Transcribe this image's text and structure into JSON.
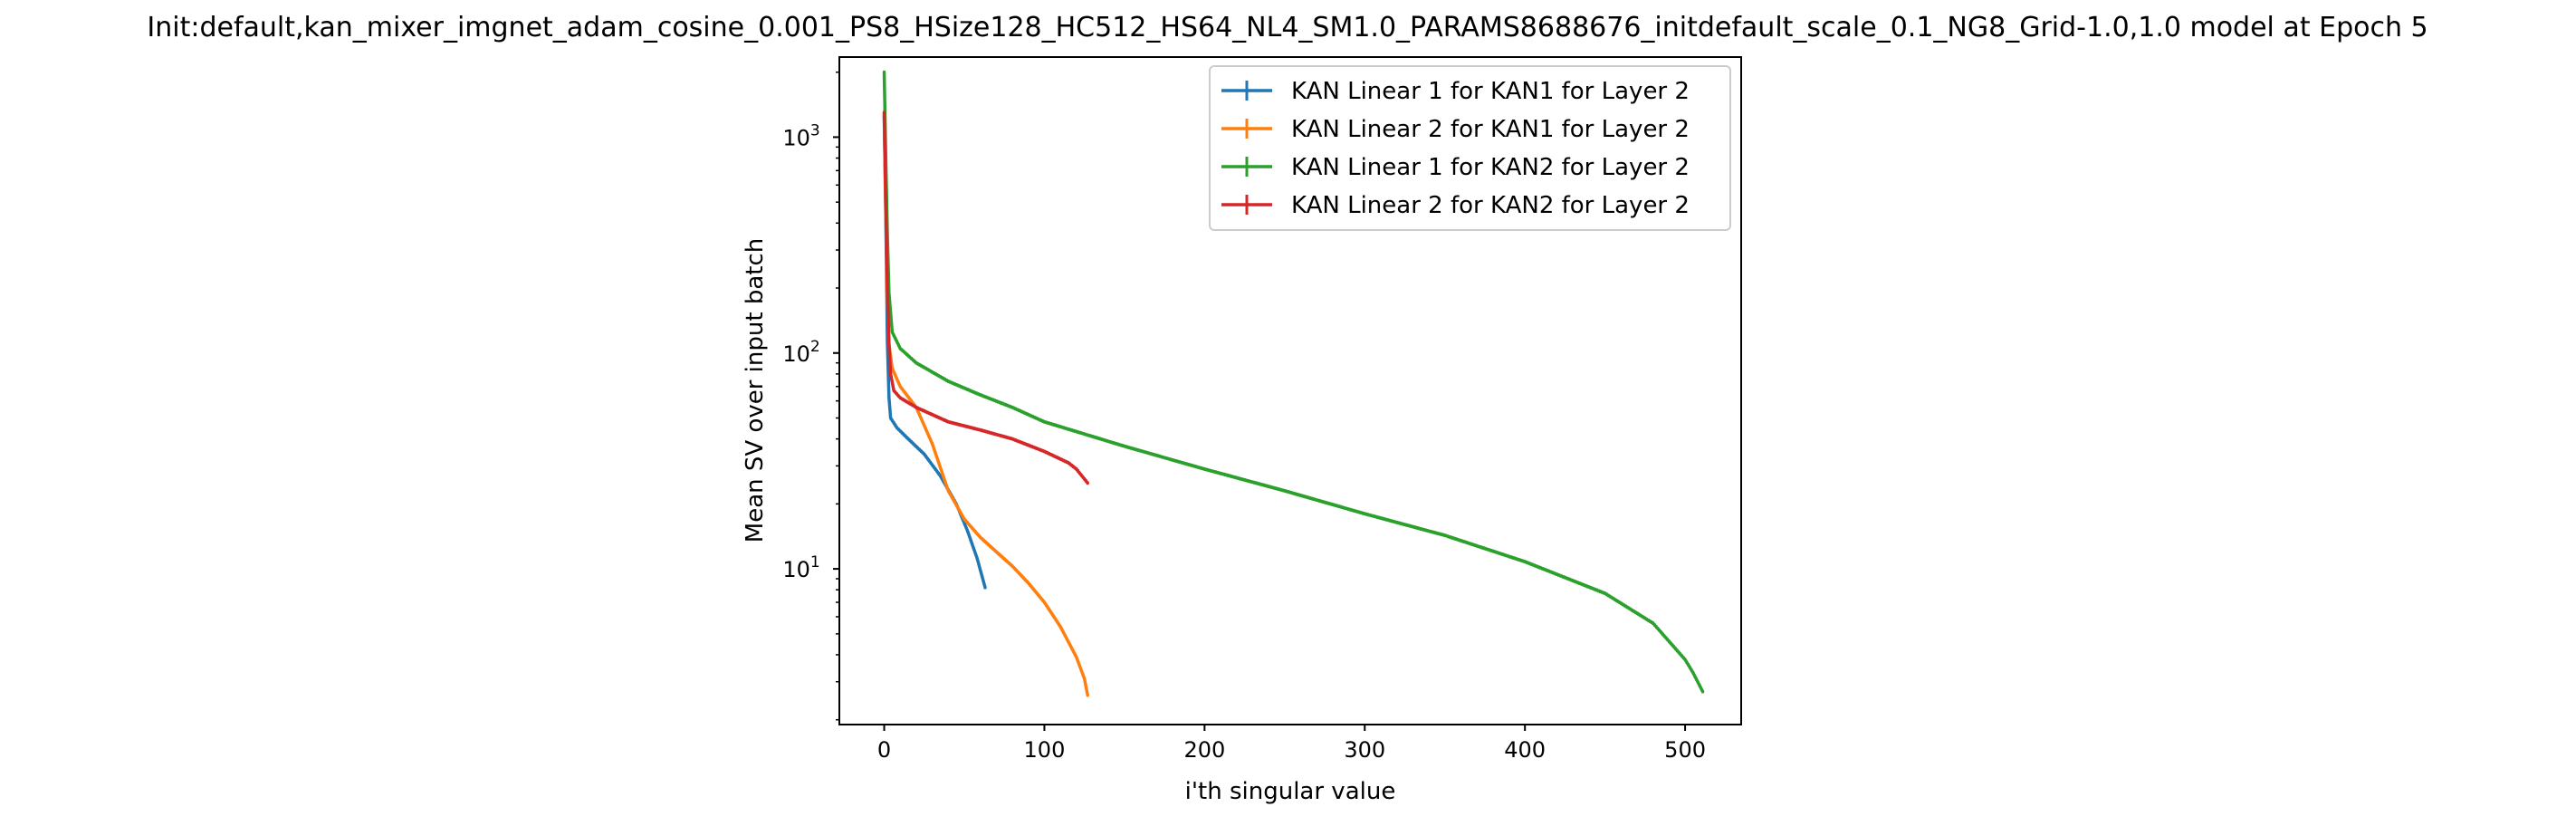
{
  "chart_data": {
    "type": "line",
    "title": "Init:default,kan_mixer_imgnet_adam_cosine_0.001_PS8_HSize128_HC512_HS64_NL4_SM1.0_PARAMS8688676_initdefault_scale_0.1_NG8_Grid-1.0,1.0 model at Epoch 5",
    "xlabel": "i'th singular value",
    "ylabel": "Mean SV over input batch",
    "xlim": [
      -28,
      535
    ],
    "ylim": [
      1.9,
      2350
    ],
    "yscale": "log",
    "grid": false,
    "legend_position": "top-right",
    "error_bars": true,
    "x_ticks": [
      {
        "value": 0,
        "label": "0"
      },
      {
        "value": 100,
        "label": "100"
      },
      {
        "value": 200,
        "label": "200"
      },
      {
        "value": 300,
        "label": "300"
      },
      {
        "value": 400,
        "label": "400"
      },
      {
        "value": 500,
        "label": "500"
      }
    ],
    "y_ticks": [
      {
        "value": 10,
        "base": "10",
        "exp": "1"
      },
      {
        "value": 100,
        "base": "10",
        "exp": "2"
      },
      {
        "value": 1000,
        "base": "10",
        "exp": "3"
      }
    ],
    "series": [
      {
        "name": "KAN Linear 1 for KAN1 for Layer 2",
        "color": "#1f77b4",
        "n": 64,
        "points": [
          [
            0,
            1250
          ],
          [
            1,
            420
          ],
          [
            2,
            110
          ],
          [
            3,
            62
          ],
          [
            4,
            50
          ],
          [
            8,
            45
          ],
          [
            15,
            40
          ],
          [
            25,
            34
          ],
          [
            35,
            27
          ],
          [
            45,
            20
          ],
          [
            52,
            15
          ],
          [
            58,
            11.2
          ],
          [
            63,
            8.2
          ]
        ]
      },
      {
        "name": "KAN Linear 2 for KAN1 for Layer 2",
        "color": "#ff7f0e",
        "n": 128,
        "points": [
          [
            0,
            1300
          ],
          [
            1,
            450
          ],
          [
            2,
            180
          ],
          [
            3,
            110
          ],
          [
            5,
            85
          ],
          [
            10,
            70
          ],
          [
            20,
            56
          ],
          [
            30,
            38
          ],
          [
            40,
            23
          ],
          [
            50,
            17
          ],
          [
            60,
            14
          ],
          [
            70,
            12
          ],
          [
            80,
            10.3
          ],
          [
            90,
            8.6
          ],
          [
            100,
            7
          ],
          [
            110,
            5.4
          ],
          [
            120,
            3.9
          ],
          [
            125,
            3.1
          ],
          [
            127,
            2.6
          ]
        ]
      },
      {
        "name": "KAN Linear 1 for KAN2 for Layer 2",
        "color": "#2ca02c",
        "n": 512,
        "points": [
          [
            0,
            2000
          ],
          [
            1,
            800
          ],
          [
            2,
            350
          ],
          [
            3,
            190
          ],
          [
            5,
            125
          ],
          [
            10,
            105
          ],
          [
            20,
            90
          ],
          [
            40,
            74
          ],
          [
            60,
            64
          ],
          [
            80,
            56
          ],
          [
            100,
            48
          ],
          [
            150,
            37
          ],
          [
            200,
            29
          ],
          [
            250,
            23
          ],
          [
            300,
            18
          ],
          [
            350,
            14.3
          ],
          [
            400,
            10.8
          ],
          [
            450,
            7.7
          ],
          [
            480,
            5.6
          ],
          [
            500,
            3.8
          ],
          [
            505,
            3.3
          ],
          [
            511,
            2.7
          ]
        ]
      },
      {
        "name": "KAN Linear 2 for KAN2 for Layer 2",
        "color": "#d62728",
        "n": 128,
        "points": [
          [
            0,
            1300
          ],
          [
            1,
            500
          ],
          [
            2,
            200
          ],
          [
            3,
            110
          ],
          [
            4,
            80
          ],
          [
            6,
            67
          ],
          [
            10,
            62
          ],
          [
            20,
            56
          ],
          [
            40,
            48
          ],
          [
            60,
            44
          ],
          [
            80,
            40
          ],
          [
            100,
            35
          ],
          [
            115,
            31
          ],
          [
            120,
            29
          ],
          [
            127,
            25
          ]
        ]
      }
    ]
  }
}
